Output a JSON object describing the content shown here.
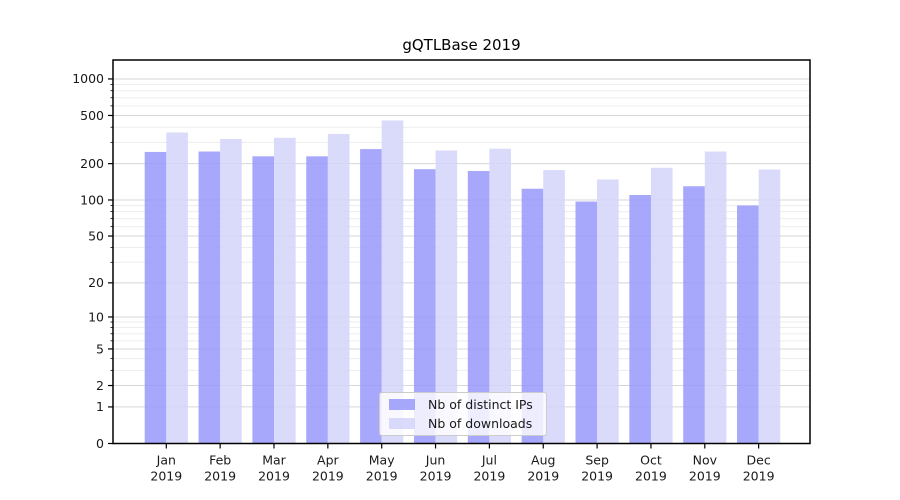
{
  "chart_data": {
    "type": "bar",
    "title": "gQTLBase 2019",
    "categories": [
      "Jan",
      "Feb",
      "Mar",
      "Apr",
      "May",
      "Jun",
      "Jul",
      "Aug",
      "Sep",
      "Oct",
      "Nov",
      "Dec"
    ],
    "category_year": "2019",
    "series": [
      {
        "name": "Nb of distinct IPs",
        "color": "#9898fa",
        "values": [
          250,
          252,
          230,
          230,
          264,
          180,
          174,
          124,
          97,
          110,
          130,
          90
        ]
      },
      {
        "name": "Nb of downloads",
        "color": "#d4d4fa",
        "values": [
          362,
          320,
          327,
          352,
          455,
          257,
          266,
          177,
          148,
          185,
          252,
          179
        ]
      }
    ],
    "xlabel": "",
    "ylabel": "",
    "y_ticks": [
      0,
      1,
      2,
      5,
      10,
      20,
      50,
      100,
      200,
      500,
      1000
    ],
    "y_minor_ticks": [
      3,
      4,
      6,
      7,
      8,
      9,
      30,
      40,
      60,
      70,
      80,
      90,
      300,
      400,
      600,
      700,
      800,
      900
    ],
    "scale": "log1p",
    "ylim": [
      0,
      1430
    ],
    "grid": "both",
    "legend_position": "lower center",
    "colors": {
      "major_grid": "#d7d7d7",
      "minor_grid": "#ededed",
      "spine": "#000000",
      "text": "#1a1a1a"
    }
  }
}
